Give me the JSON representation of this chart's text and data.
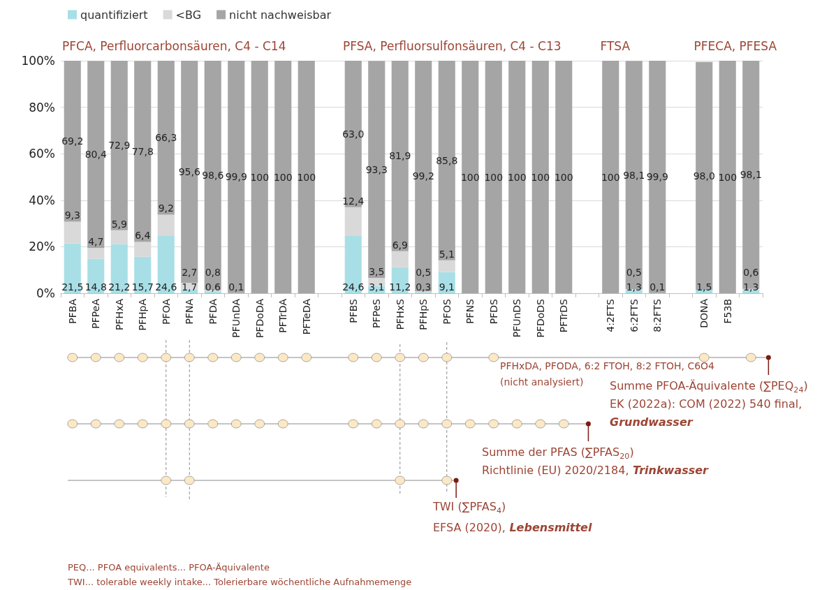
{
  "chart_data": {
    "type": "bar",
    "stacked": true,
    "categories": [
      "PFBA",
      "PFPeA",
      "PFHxA",
      "PFHpA",
      "PFOA",
      "PFNA",
      "PFDA",
      "PFUnDA",
      "PFDoDA",
      "PFTrDA",
      "PFTeDA",
      null,
      "PFBS",
      "PFPeS",
      "PFHxS",
      "PFHpS",
      "PFOS",
      "PFNS",
      "PFDS",
      "PFUnDS",
      "PFDoDS",
      "PFTrDS",
      null,
      "4:2FTS",
      "6:2FTS",
      "8:2FTS",
      null,
      "DONA",
      "F53B",
      null
    ],
    "series": [
      {
        "name": "quantifiziert",
        "color": "#a8dfe6",
        "values": [
          21.5,
          14.8,
          21.2,
          15.7,
          24.6,
          1.7,
          0.6,
          0.1,
          0,
          0,
          0,
          null,
          24.6,
          3.1,
          11.2,
          0.3,
          9.1,
          0,
          0,
          0,
          0,
          0,
          null,
          0,
          1.3,
          0.1,
          null,
          1.5,
          0,
          1.3
        ],
        "value_labels": [
          "21,5",
          "14,8",
          "21,2",
          "15,7",
          "24,6",
          "1,7",
          "0,6",
          "0,1",
          null,
          null,
          null,
          null,
          "24,6",
          "3,1",
          "11,2",
          "0,3",
          "9,1",
          null,
          null,
          null,
          null,
          null,
          null,
          null,
          "1,3",
          "0,1",
          null,
          "1,5",
          null,
          "1,3"
        ]
      },
      {
        "name": "<BG",
        "color": "#d9d9d9",
        "values": [
          9.3,
          4.7,
          5.9,
          6.4,
          9.2,
          2.7,
          0.8,
          0,
          0,
          0,
          0,
          null,
          12.4,
          3.5,
          6.9,
          0.5,
          5.1,
          0,
          0,
          0,
          0,
          0,
          null,
          0,
          0.5,
          0,
          null,
          null,
          0,
          0.6
        ],
        "value_labels": [
          "9,3",
          "4,7",
          "5,9",
          "6,4",
          "9,2",
          "2,7",
          "0,8",
          null,
          null,
          null,
          null,
          null,
          "12,4",
          "3,5",
          "6,9",
          "0,5",
          "5,1",
          null,
          null,
          null,
          null,
          null,
          null,
          null,
          "0,5",
          null,
          null,
          null,
          null,
          "0,6"
        ]
      },
      {
        "name": "nicht nachweisbar",
        "color": "#a5a5a5",
        "values": [
          69.2,
          80.4,
          72.9,
          77.8,
          66.3,
          95.6,
          98.6,
          99.9,
          100,
          100,
          100,
          null,
          63.0,
          93.3,
          81.9,
          99.2,
          85.8,
          100,
          100,
          100,
          100,
          100,
          null,
          100,
          98.1,
          99.9,
          null,
          98.0,
          100,
          98.1
        ],
        "value_labels": [
          "69,2",
          "80,4",
          "72,9",
          "77,8",
          "66,3",
          "95,6",
          "98,6",
          "99,9",
          "100",
          "100",
          "100",
          null,
          "63,0",
          "93,3",
          "81,9",
          "99,2",
          "85,8",
          "100",
          "100",
          "100",
          "100",
          "100",
          null,
          "100",
          "98,1",
          "99,9",
          null,
          "98,0",
          "100",
          "98,1"
        ]
      }
    ],
    "ylim": [
      0,
      100
    ],
    "yticks": [
      {
        "value": 0,
        "label": "0%"
      },
      {
        "value": 20,
        "label": "20%"
      },
      {
        "value": 40,
        "label": "40%"
      },
      {
        "value": 60,
        "label": "60%"
      },
      {
        "value": 80,
        "label": "80%"
      },
      {
        "value": 100,
        "label": "100%"
      }
    ],
    "grid": "y",
    "legend": "top left",
    "annotations": [
      "PFCA, Perfluorcarbonsäuren, C4 - C14",
      "PFSA, Perfluorsulfonsäuren, C4 - C13",
      "FTSA",
      "PFECA, PFESA",
      "PFHxDA, PFODA, 6:2 FTOH, 8:2 FTOH, C6O4",
      "(nicht analysiert)",
      "Summe PFOA-Äquivalente (∑PEQ$_{24}$)",
      "EK (2022a): COM (2022) 540 final,",
      "Grundwasser",
      "Summe der PFAS (∑PFAS$_{20}$)",
      "Richtlinie (EU) 2020/2184,",
      "Trinkwasser",
      "TWI (∑PFAS$_{4}$)",
      "EFSA (2020),",
      "Lebensmittel",
      "PEQ... PFOA equivalents... PFOA-Äquivalente",
      "TWI... tolerable weekly intake... Tolerierbare wöchentliche Aufnahmemenge"
    ]
  }
}
